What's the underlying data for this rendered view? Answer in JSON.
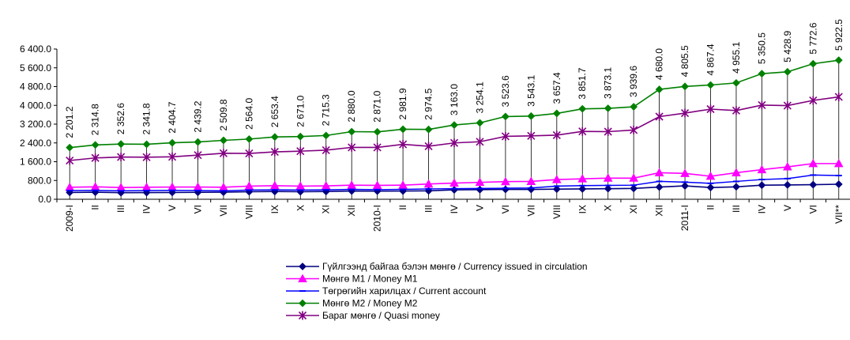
{
  "chart_data": {
    "type": "line",
    "categories": [
      "2009-I",
      "II",
      "III",
      "IV",
      "V",
      "VI",
      "VII",
      "VIII",
      "IX",
      "X",
      "XI",
      "XII",
      "2010-I",
      "II",
      "III",
      "IV",
      "V",
      "VI",
      "VII",
      "VIII",
      "IX",
      "X",
      "XI",
      "XII",
      "2011-I",
      "II",
      "III",
      "IV",
      "V",
      "VI",
      "VII**"
    ],
    "y_ticks": [
      "0.0",
      "800.0",
      "1 600.0",
      "2 400.0",
      "3 200.0",
      "4 000.0",
      "4 800.0",
      "5 600.0",
      "6 400.0"
    ],
    "ylim": [
      0,
      6400
    ],
    "grid": false,
    "legend_position": "bottom",
    "series": [
      {
        "name": "Гүйлгээнд байгаа бэлэн мөнгө / Currency issued  in circulation",
        "color": "#000080",
        "marker": "diamond",
        "values": [
          290,
          300,
          280,
          285,
          290,
          295,
          300,
          320,
          330,
          320,
          330,
          350,
          345,
          350,
          360,
          400,
          410,
          420,
          420,
          430,
          440,
          450,
          460,
          520,
          570,
          500,
          530,
          600,
          610,
          620,
          640
        ]
      },
      {
        "name": "Мөнгө M1 /  Money M1",
        "color": "#ff00ff",
        "marker": "triangle",
        "values": [
          510,
          530,
          500,
          510,
          520,
          520,
          510,
          560,
          580,
          560,
          570,
          600,
          590,
          600,
          650,
          690,
          720,
          750,
          760,
          840,
          870,
          900,
          900,
          1130,
          1100,
          980,
          1130,
          1260,
          1380,
          1520,
          1520
        ]
      },
      {
        "name": "Төгрөгийн харилцах / Current account",
        "color": "#0000ff",
        "marker": "dash",
        "values": [
          370,
          380,
          360,
          370,
          380,
          370,
          360,
          390,
          400,
          390,
          400,
          420,
          410,
          420,
          440,
          450,
          460,
          470,
          480,
          560,
          580,
          590,
          600,
          760,
          730,
          680,
          760,
          840,
          880,
          1030,
          1010
        ]
      },
      {
        "name": "Мөнгө M2 /    Money M2",
        "color": "#008000",
        "marker": "diamond",
        "values": [
          2201.2,
          2314.8,
          2352.6,
          2341.8,
          2404.7,
          2439.2,
          2509.8,
          2564.0,
          2653.4,
          2671.0,
          2715.3,
          2880.0,
          2871.0,
          2981.9,
          2974.5,
          3163.0,
          3254.1,
          3523.6,
          3543.1,
          3657.4,
          3851.7,
          3873.1,
          3939.6,
          4680.0,
          4805.5,
          4867.4,
          4955.1,
          5350.5,
          5428.9,
          5772.6,
          5922.5
        ]
      },
      {
        "name": "Бараг мөнгө / Quasi money",
        "color": "#800080",
        "marker": "star",
        "values": [
          1650,
          1760,
          1800,
          1790,
          1810,
          1880,
          1960,
          1950,
          2020,
          2050,
          2090,
          2210,
          2210,
          2340,
          2260,
          2400,
          2450,
          2680,
          2700,
          2730,
          2890,
          2880,
          2950,
          3520,
          3670,
          3840,
          3780,
          4010,
          3990,
          4210,
          4360
        ]
      }
    ],
    "data_labels": [
      "2 201.2",
      "2 314.8",
      "2 352.6",
      "2 341.8",
      "2 404.7",
      "2 439.2",
      "2 509.8",
      "2 564.0",
      "2 653.4",
      "2 671.0",
      "2 715.3",
      "2 880.0",
      "2 871.0",
      "2 981.9",
      "2 974.5",
      "3 163.0",
      "3 254.1",
      "3 523.6",
      "3 543.1",
      "3 657.4",
      "3 851.7",
      "3 873.1",
      "3 939.6",
      "4 680.0",
      "4 805.5",
      "4 867.4",
      "4 955.1",
      "5 350.5",
      "5 428.9",
      "5 772.6",
      "5 922.5"
    ]
  }
}
